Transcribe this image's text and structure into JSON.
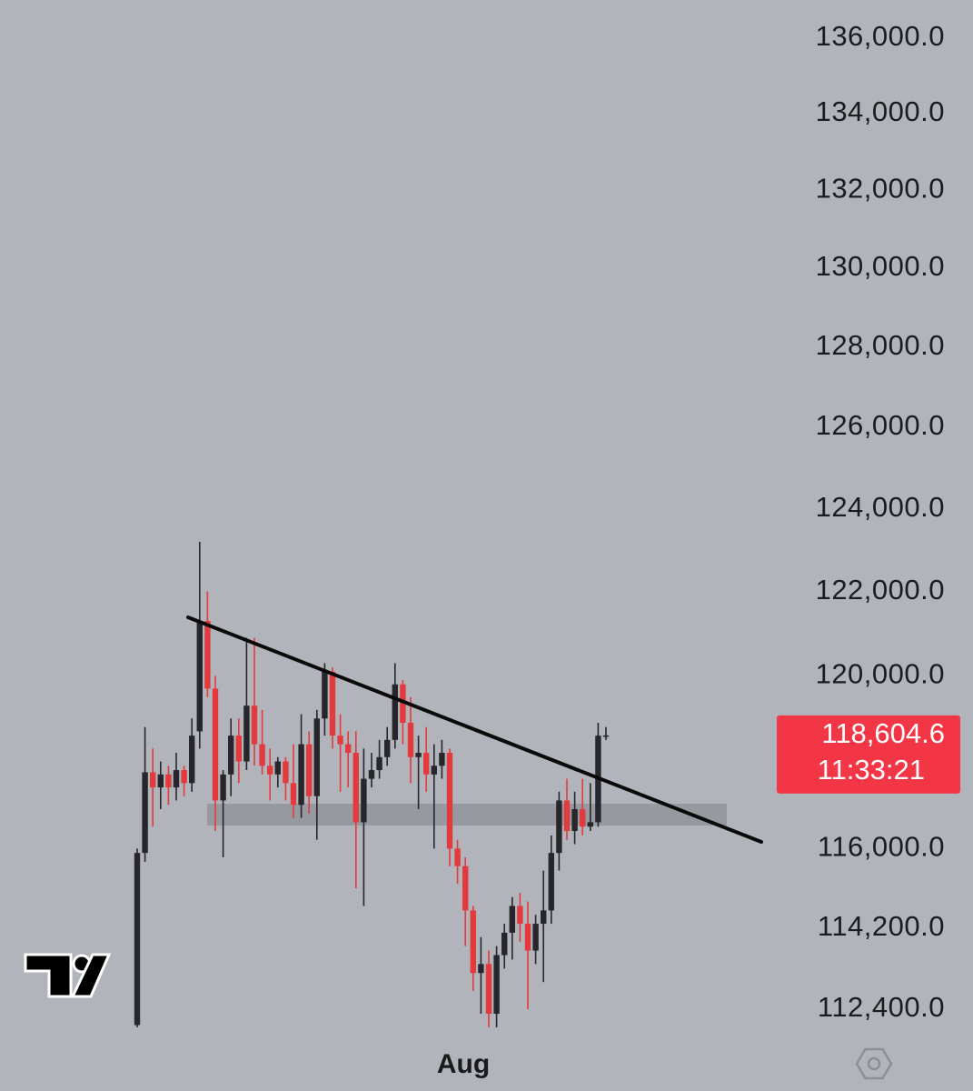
{
  "chart_data": {
    "type": "candlestick",
    "log_scale": true,
    "ylim": [
      112400,
      136000
    ],
    "yticks": [
      {
        "value": 136000,
        "label": "136,000.0"
      },
      {
        "value": 134000,
        "label": "134,000.0"
      },
      {
        "value": 132000,
        "label": "132,000.0"
      },
      {
        "value": 130000,
        "label": "130,000.0"
      },
      {
        "value": 128000,
        "label": "128,000.0"
      },
      {
        "value": 126000,
        "label": "126,000.0"
      },
      {
        "value": 124000,
        "label": "124,000.0"
      },
      {
        "value": 122000,
        "label": "122,000.0"
      },
      {
        "value": 120000,
        "label": "120,000.0"
      },
      {
        "value": 116000,
        "label": "116,000.0"
      },
      {
        "value": 114200,
        "label": "114,200.0"
      },
      {
        "value": 112400,
        "label": "112,400.0"
      }
    ],
    "time_label": "Aug",
    "up_color": "#26262b",
    "down_color": "#e23a3d",
    "open": [
      112050,
      115900,
      117750,
      117400,
      117700,
      117400,
      117800,
      117500,
      118700,
      121300,
      119700,
      117100,
      117700,
      118600,
      118000,
      119300,
      118400,
      117900,
      117700,
      118000,
      117500,
      117000,
      118400,
      117200,
      119000,
      120100,
      118600,
      118400,
      118200,
      116600,
      117600,
      117800,
      118100,
      118500,
      119800,
      118900,
      118100,
      118200,
      117700,
      117900,
      118200,
      116000,
      115600,
      114600,
      113200,
      113400,
      112300,
      113600,
      114100,
      114700,
      114300,
      113700,
      114300,
      114600,
      115900,
      117100,
      116400,
      116900,
      116500,
      116600,
      118600
    ],
    "high": [
      116000,
      118800,
      118300,
      118000,
      117900,
      118200,
      117900,
      119000,
      123200,
      122000,
      120000,
      117800,
      119000,
      119000,
      120900,
      120900,
      119200,
      118300,
      118100,
      118100,
      118400,
      119100,
      118700,
      119200,
      120300,
      120200,
      119100,
      118700,
      118700,
      118300,
      118200,
      118500,
      118800,
      120300,
      119900,
      119500,
      118600,
      118800,
      118400,
      118500,
      118300,
      116200,
      115800,
      114700,
      114000,
      113700,
      113800,
      114300,
      114900,
      115000,
      114800,
      114500,
      115500,
      116300,
      117300,
      117600,
      117300,
      117600,
      117500,
      118900,
      118800
    ],
    "low": [
      112000,
      115700,
      116500,
      116900,
      117000,
      117100,
      117200,
      117300,
      118300,
      119500,
      116400,
      115800,
      117200,
      117500,
      117800,
      117900,
      117700,
      117100,
      117400,
      117100,
      116700,
      116700,
      116800,
      116200,
      118600,
      118300,
      117300,
      117400,
      115100,
      114700,
      117400,
      117600,
      117900,
      118300,
      118400,
      117500,
      116900,
      117300,
      116000,
      117600,
      115600,
      115200,
      113800,
      112800,
      112300,
      112000,
      112000,
      113300,
      113500,
      113900,
      112400,
      113400,
      113000,
      114300,
      115500,
      116200,
      116100,
      116300,
      116400,
      116500,
      118500
    ],
    "close": [
      115900,
      117750,
      117400,
      117700,
      117400,
      117800,
      117500,
      118600,
      121300,
      119700,
      117100,
      117700,
      118600,
      118000,
      119300,
      118400,
      117900,
      117700,
      118000,
      117500,
      117000,
      118400,
      117200,
      119000,
      120100,
      118600,
      118400,
      118200,
      116600,
      117600,
      117800,
      118100,
      118500,
      119800,
      118900,
      118100,
      118200,
      117700,
      117900,
      118200,
      116000,
      115600,
      114600,
      113200,
      113400,
      112300,
      113600,
      114100,
      114700,
      114300,
      113700,
      114300,
      114600,
      115900,
      117100,
      116400,
      116900,
      116500,
      116600,
      118600,
      118604.6
    ],
    "last_price": 118604.6,
    "last_price_label": "118,604.6",
    "countdown": "11:33:21"
  }
}
